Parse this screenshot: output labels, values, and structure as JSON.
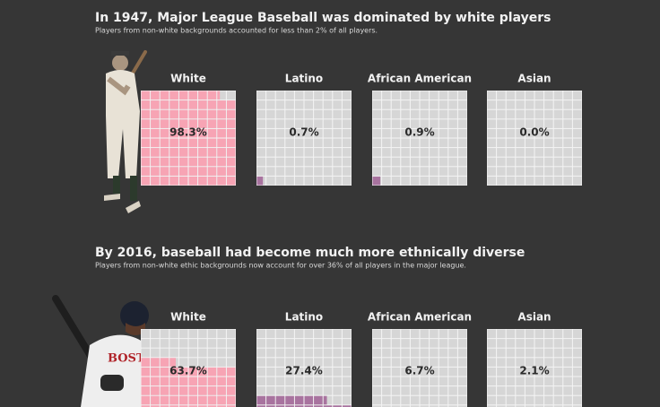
{
  "chart_data": [
    {
      "type": "waffle",
      "title": "In 1947, Major League Baseball was dominated by white players",
      "subtitle": "Players from non-white backgrounds accounted for less than 2% of all players.",
      "categories": [
        "White",
        "Latino",
        "African American",
        "Asian"
      ],
      "values": [
        98.3,
        0.7,
        0.9,
        0.0
      ],
      "value_labels": [
        "98.3%",
        "0.7%",
        "0.9%",
        "0.0%"
      ],
      "colors": [
        "#f7a4b4",
        "#a8739f",
        "#a8739f",
        "#a8739f"
      ]
    },
    {
      "type": "waffle",
      "title": "By 2016, baseball had become much more ethnically diverse",
      "subtitle": "Players from non-white ethic backgrounds now account for over 36% of all players in the major league.",
      "categories": [
        "White",
        "Latino",
        "African American",
        "Asian"
      ],
      "values": [
        63.7,
        27.4,
        6.7,
        2.1
      ],
      "value_labels": [
        "63.7%",
        "27.4%",
        "6.7%",
        "2.1%"
      ],
      "colors": [
        "#f7a4b4",
        "#a8739f",
        "#a8739f",
        "#a8739f"
      ]
    }
  ]
}
